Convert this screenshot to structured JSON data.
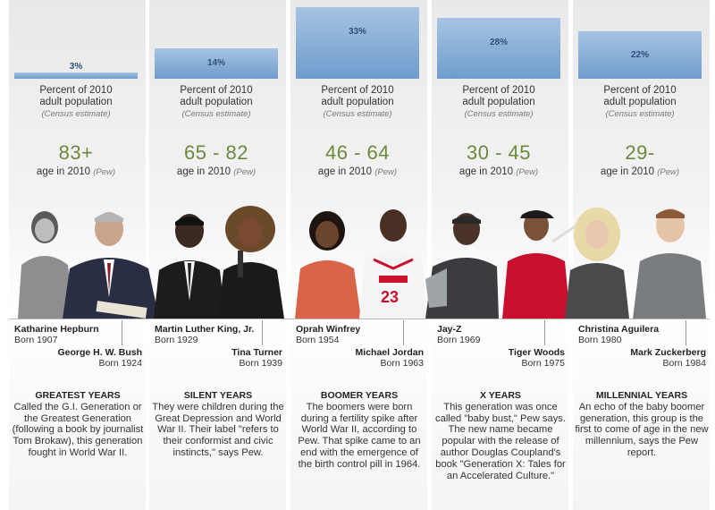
{
  "chart_data": {
    "type": "bar",
    "title": "",
    "categories": [
      "Greatest Years",
      "Silent Years",
      "Boomer Years",
      "X Years",
      "Millennial Years"
    ],
    "series": [
      {
        "name": "",
        "values": [
          3,
          14,
          33,
          28,
          22
        ]
      }
    ],
    "value_labels": [
      "3%",
      "14%",
      "33%",
      "28%",
      "22%"
    ],
    "ylim": [
      0,
      33
    ],
    "units": "%"
  },
  "generations": [
    {
      "pct_line1": "Percent of 2010",
      "pct_line2": "adult population",
      "census": "(Census estimate)",
      "age_range": "83+",
      "age_note": "age in 2010",
      "pew": "(Pew)",
      "person_a": {
        "name": "Katharine Hepburn",
        "born": "Born 1907"
      },
      "person_b": {
        "name": "George H. W. Bush",
        "born": "Born 1924"
      },
      "title": "GREATEST YEARS",
      "description": "Called the G.I. Generation or the Greatest Generation (following a book by journalist Tom Brokaw), this generation fought in World War II."
    },
    {
      "pct_line1": "Percent of 2010",
      "pct_line2": "adult population",
      "census": "(Census estimate)",
      "age_range": "65 - 82",
      "age_note": "age in 2010",
      "pew": "(Pew)",
      "person_a": {
        "name": "Martin Luther King, Jr.",
        "born": "Born 1929"
      },
      "person_b": {
        "name": "Tina Turner",
        "born": "Born 1939"
      },
      "title": "SILENT YEARS",
      "description": "They were children during the Great Depression and World War II. Their label \"refers to their conformist and civic instincts,\" says Pew."
    },
    {
      "pct_line1": "Percent of 2010",
      "pct_line2": "adult population",
      "census": "(Census estimate)",
      "age_range": "46 - 64",
      "age_note": "age in 2010",
      "pew": "(Pew)",
      "person_a": {
        "name": "Oprah Winfrey",
        "born": "Born 1954"
      },
      "person_b": {
        "name": "Michael Jordan",
        "born": "Born 1963"
      },
      "title": "BOOMER YEARS",
      "description": "The boomers were born during a fertility spike after World War II, according to Pew. That spike came to an end with the emergence of the birth control pill in 1964."
    },
    {
      "pct_line1": "Percent of 2010",
      "pct_line2": "adult population",
      "census": "(Census estimate)",
      "age_range": "30 - 45",
      "age_note": "age in 2010",
      "pew": "(Pew)",
      "person_a": {
        "name": "Jay-Z",
        "born": "Born 1969"
      },
      "person_b": {
        "name": "Tiger Woods",
        "born": "Born 1975"
      },
      "title": "X YEARS",
      "description": "This generation was once called \"baby bust,\" Pew says. The new name became popular with the release of author Douglas Coupland's book \"Generation X: Tales for an Accelerated Culture.\""
    },
    {
      "pct_line1": "Percent of 2010",
      "pct_line2": "adult population",
      "census": "(Census estimate)",
      "age_range": "29-",
      "age_note": "age in 2010",
      "pew": "(Pew)",
      "person_a": {
        "name": "Christina Aguilera",
        "born": "Born 1980"
      },
      "person_b": {
        "name": "Mark Zuckerberg",
        "born": "Born 1984"
      },
      "title": "MILLENNIAL YEARS",
      "description": "An echo of the baby boomer generation, this group is the first to come of age in the new millennium, says the Pew report."
    }
  ],
  "colors": {
    "bar_top": "#a6c4e2",
    "bar_bottom": "#6f9ccd",
    "bar_label": "#2d4f78",
    "age_green": "#6a8a3c"
  }
}
